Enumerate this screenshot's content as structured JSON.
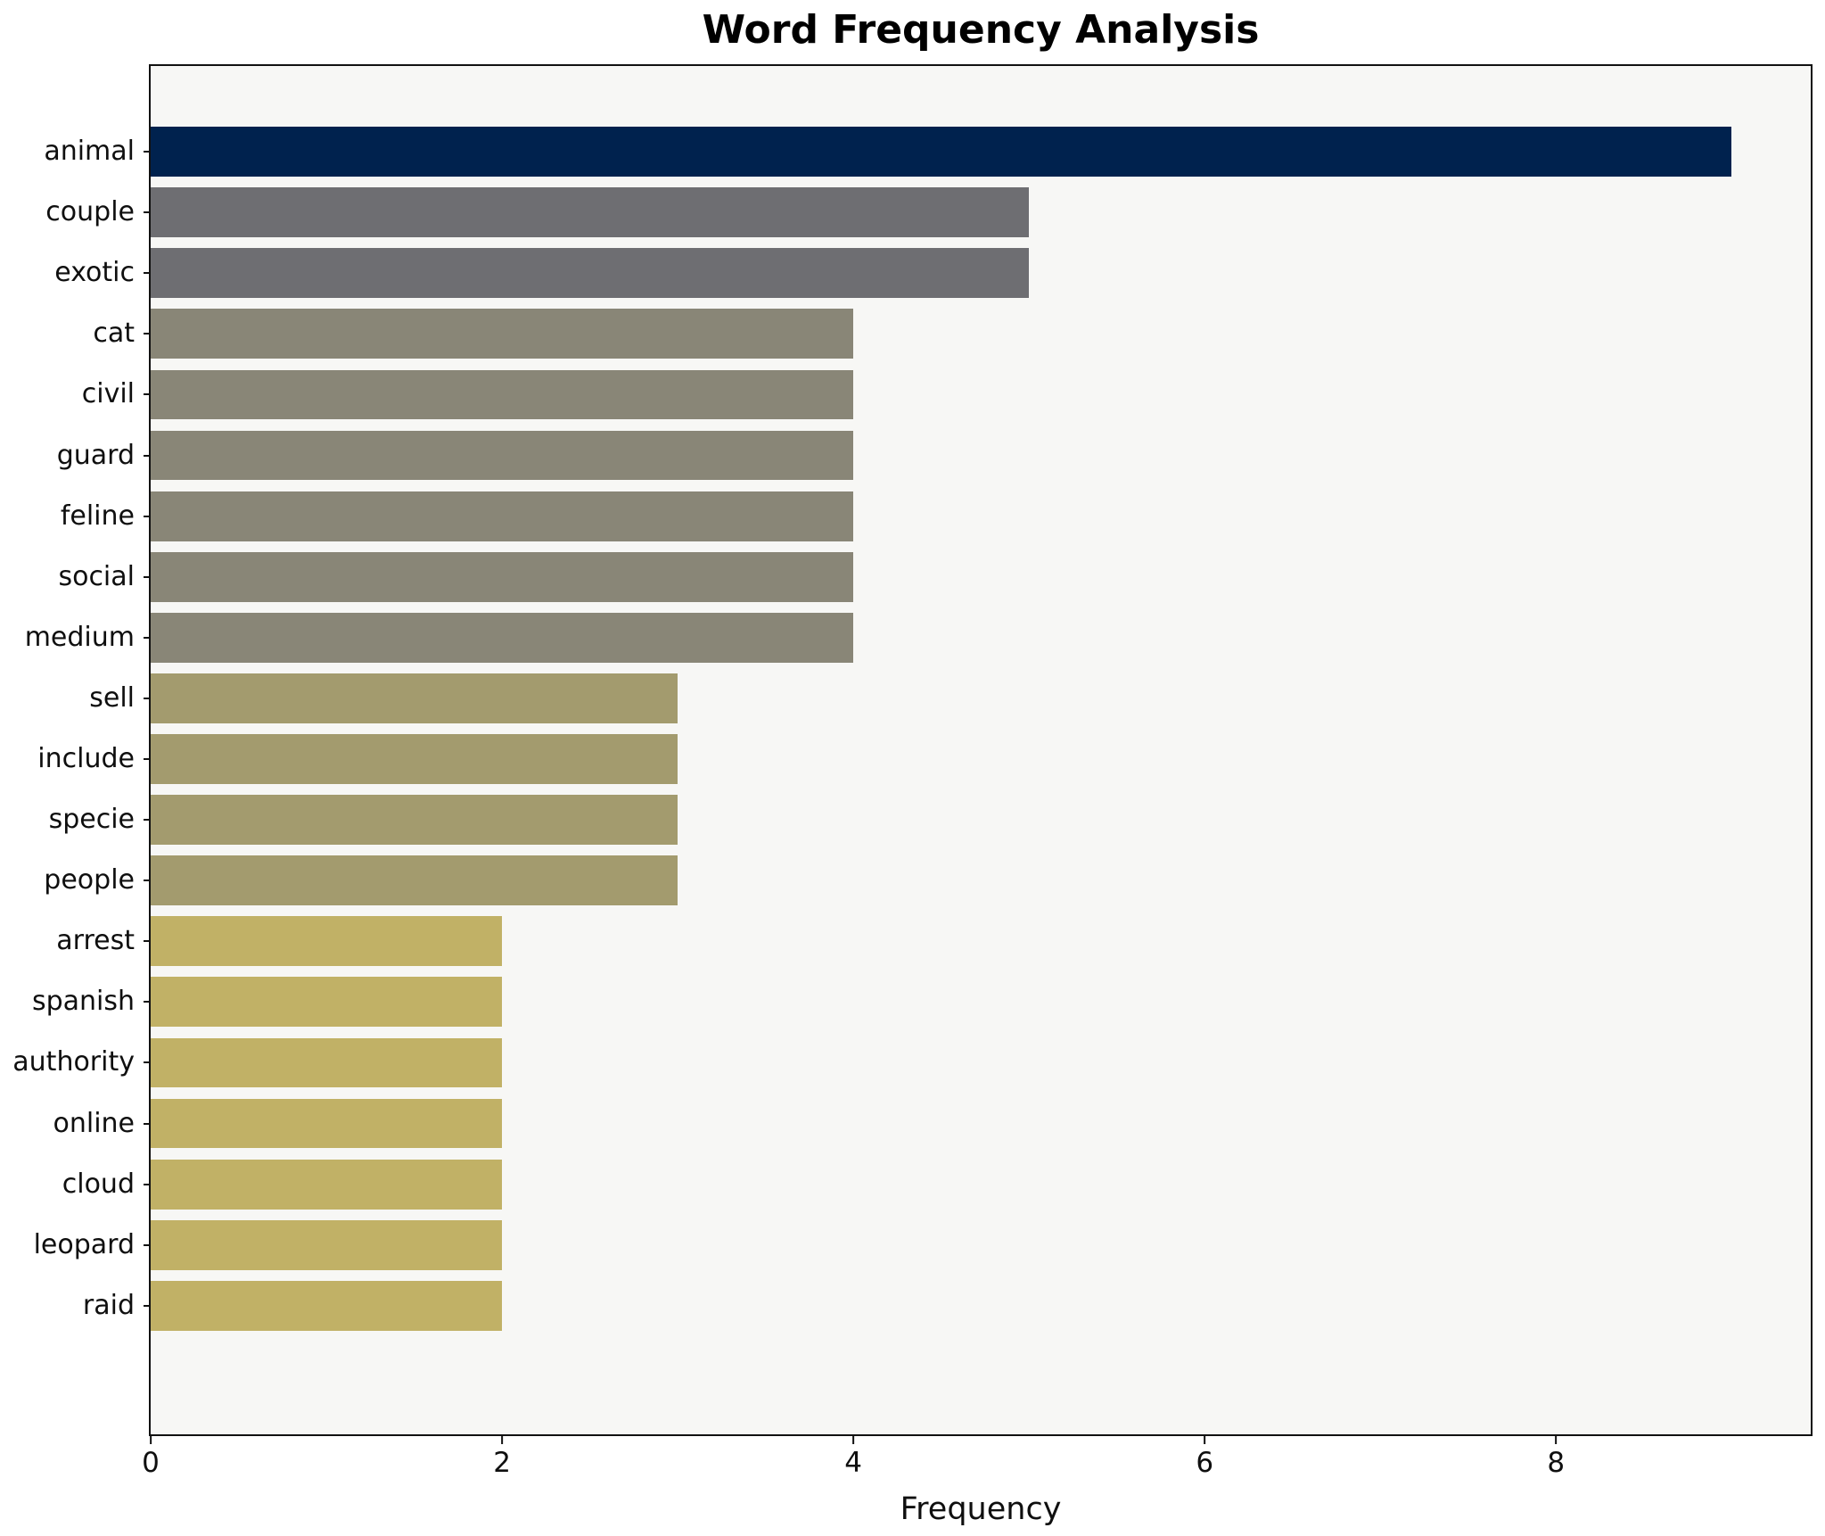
{
  "chart_data": {
    "type": "bar",
    "orientation": "horizontal",
    "title": "Word Frequency Analysis",
    "xlabel": "Frequency",
    "ylabel": "",
    "categories": [
      "animal",
      "couple",
      "exotic",
      "cat",
      "civil",
      "guard",
      "feline",
      "social",
      "medium",
      "sell",
      "include",
      "specie",
      "people",
      "arrest",
      "spanish",
      "authority",
      "online",
      "cloud",
      "leopard",
      "raid"
    ],
    "values": [
      9,
      5,
      5,
      4,
      4,
      4,
      4,
      4,
      4,
      3,
      3,
      3,
      3,
      2,
      2,
      2,
      2,
      2,
      2,
      2
    ],
    "bar_colors": [
      "#00224e",
      "#6e6e72",
      "#6e6e72",
      "#898677",
      "#898677",
      "#898677",
      "#898677",
      "#898677",
      "#898677",
      "#a39b6e",
      "#a39b6e",
      "#a39b6e",
      "#a39b6e",
      "#c1b166",
      "#c1b166",
      "#c1b166",
      "#c1b166",
      "#c1b166",
      "#c1b166",
      "#c1b166"
    ],
    "xlim": [
      0,
      9.45
    ],
    "x_ticks": [
      0,
      2,
      4,
      6,
      8
    ],
    "grid": false,
    "legend": "none",
    "plot_background": "#f7f7f5",
    "figure_background": "#ffffff",
    "spine_color": "#111111"
  }
}
